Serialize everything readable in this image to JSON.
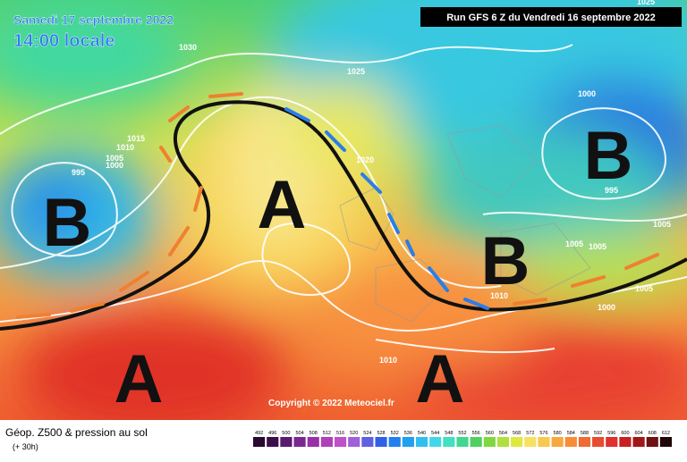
{
  "header": {
    "date": "Samedi 17 septembre 2022",
    "time": "14:00 locale",
    "run": "Run GFS 6 Z du Vendredi 16 septembre 2022"
  },
  "map": {
    "centers": [
      "B",
      "A",
      "B",
      "B",
      "A",
      "A"
    ],
    "isobar_labels": [
      "1030",
      "1025",
      "1000",
      "1015",
      "1010",
      "1005",
      "1000",
      "995",
      "1020",
      "995",
      "1005",
      "1005",
      "1005",
      "1000",
      "1010",
      "1010",
      "1005",
      "1025"
    ],
    "copyright": "Copyright © 2022 Meteociel.fr"
  },
  "footer": {
    "title": "Géop. Z500 & pression au sol",
    "lead": "(+ 30h)",
    "scale": {
      "labels": [
        492,
        496,
        500,
        504,
        508,
        512,
        516,
        520,
        524,
        528,
        532,
        536,
        540,
        544,
        548,
        552,
        556,
        560,
        564,
        568,
        572,
        576,
        580,
        584,
        588,
        592,
        596,
        600,
        604,
        608,
        612
      ],
      "colors": [
        "#2a0a30",
        "#3c0f4a",
        "#5a1a70",
        "#7a2890",
        "#9a30a8",
        "#b040b8",
        "#c050c8",
        "#a060d8",
        "#6060e0",
        "#3060e8",
        "#2080f0",
        "#20a0f0",
        "#30c0f0",
        "#40d8e8",
        "#40e0c0",
        "#40d890",
        "#50d060",
        "#80d840",
        "#b0e040",
        "#e0e840",
        "#f8e060",
        "#f8c850",
        "#f8a840",
        "#f88c38",
        "#f06c30",
        "#e84c30",
        "#e03030",
        "#c82020",
        "#a01818",
        "#701010",
        "#200808"
      ]
    }
  }
}
